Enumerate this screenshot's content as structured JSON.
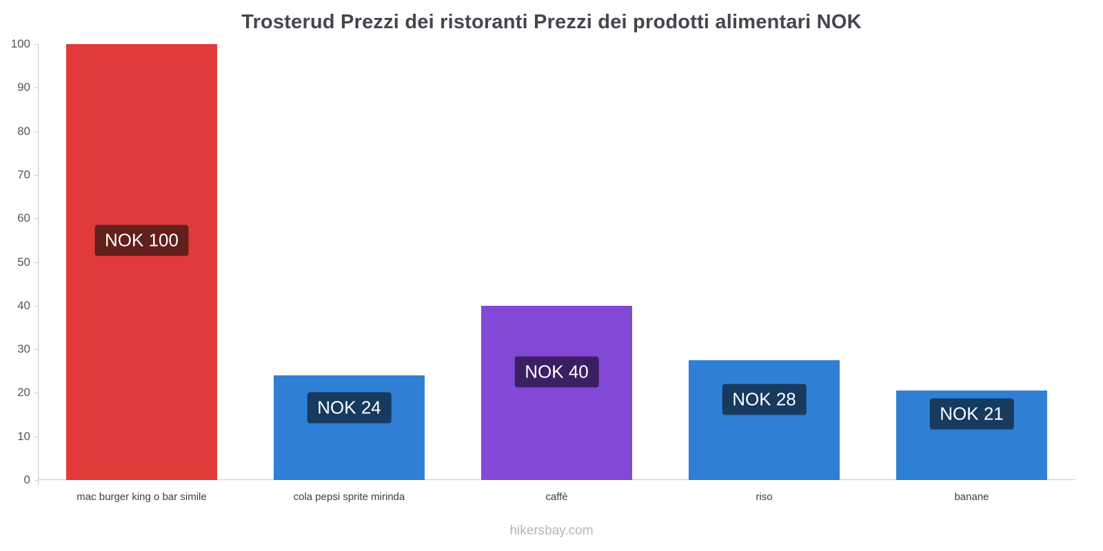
{
  "title": "Trosterud Prezzi dei ristoranti Prezzi dei prodotti alimentari NOK",
  "footer": "hikersbay.com",
  "chart_data": {
    "type": "bar",
    "title": "Trosterud Prezzi dei ristoranti Prezzi dei prodotti alimentari NOK",
    "categories": [
      "mac burger king o bar simile",
      "cola pepsi sprite mirinda",
      "caffè",
      "riso",
      "banane"
    ],
    "values": [
      100,
      24,
      40,
      27.5,
      20.5
    ],
    "labels": [
      "NOK 100",
      "NOK 24",
      "NOK 40",
      "NOK 28",
      "NOK 21"
    ],
    "bar_colors": [
      "#e03b3a",
      "#2f80d5",
      "#8149d6",
      "#2f80d5",
      "#2f80d5"
    ],
    "label_bg_colors": [
      "#621f1b",
      "#173a5f",
      "#3b1f63",
      "#173a5f",
      "#173a5f"
    ],
    "xlabel": "",
    "ylabel": "",
    "ylim": [
      0,
      100
    ],
    "yticks": [
      0,
      10,
      20,
      30,
      40,
      50,
      60,
      70,
      80,
      90,
      100
    ],
    "grid": false,
    "legend": false,
    "currency": "NOK",
    "watermark": "hikersbay.com"
  }
}
